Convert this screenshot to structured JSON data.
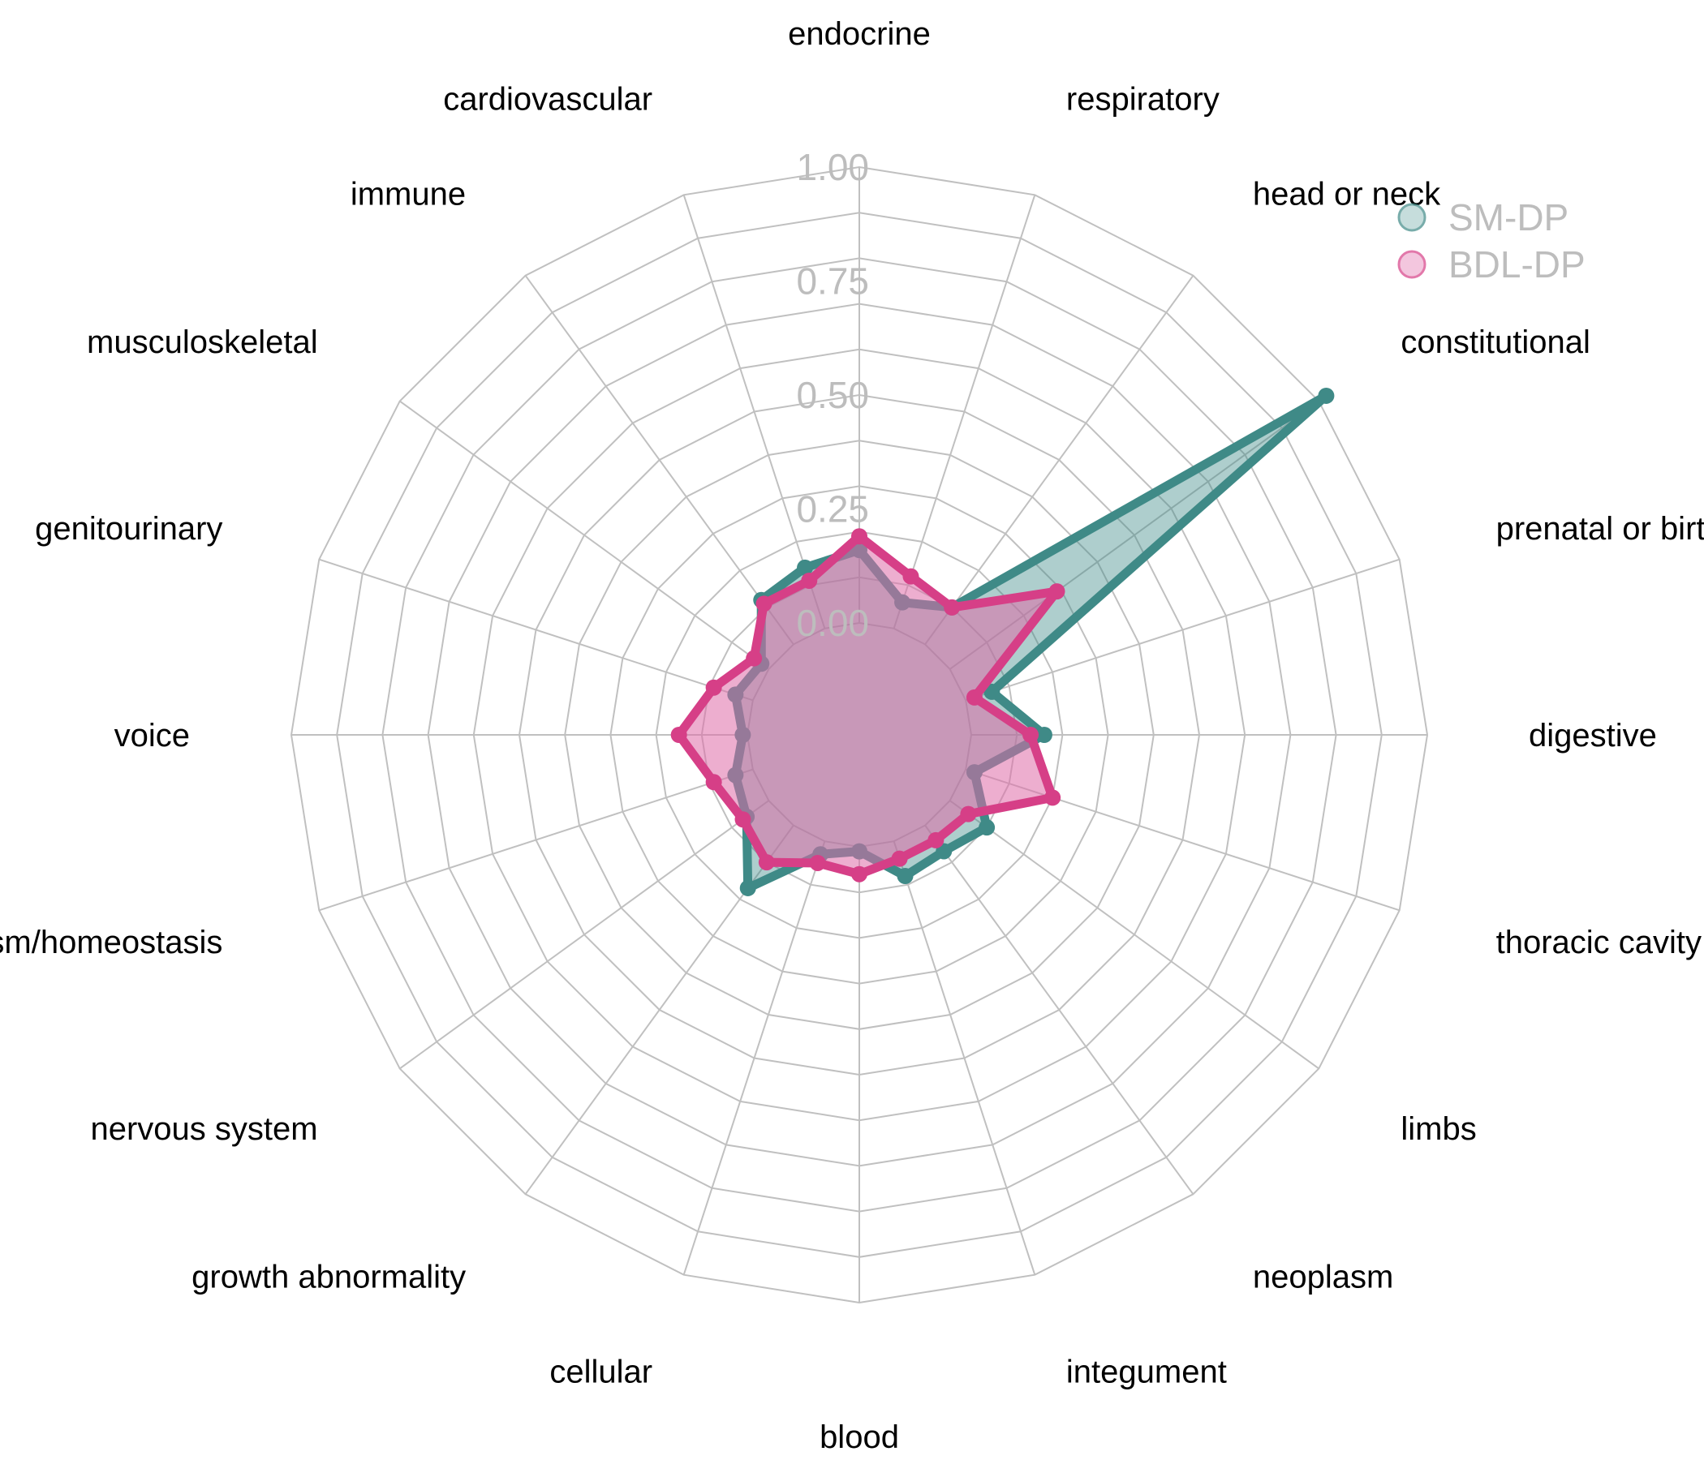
{
  "chart_data": {
    "type": "radar",
    "title": "",
    "range": [
      0,
      1
    ],
    "grid": true,
    "legend": "top-right",
    "ticks": [
      "0.00",
      "0.25",
      "0.50",
      "0.75",
      "1.00"
    ],
    "tick_values": [
      0,
      0.25,
      0.5,
      0.75,
      1.0
    ],
    "categories": [
      "endocrine",
      "respiratory",
      "head or neck",
      "constitutional",
      "prenatal or birth",
      "digestive",
      "thoracic cavity",
      "limbs",
      "neoplasm",
      "integument",
      "blood",
      "cellular",
      "growth abnormality",
      "nervous system",
      "metabolism/homeostasis",
      "voice",
      "genitourinary",
      "musculoskeletal",
      "immune",
      "cardiovascular"
    ],
    "series": [
      {
        "name": "SM-DP",
        "color": "#3f8a87",
        "fill": "rgba(63,138,135,0.42)",
        "values": [
          0.16,
          0.06,
          0.1,
          1.02,
          0.06,
          0.16,
          0.02,
          0.1,
          0.07,
          0.08,
          0.01,
          0.03,
          0.17,
          0.06,
          0.04,
          0.01,
          0.04,
          0.02,
          0.12,
          0.14
        ]
      },
      {
        "name": "BDL-DP",
        "color": "#d63f87",
        "fill": "rgba(222,107,167,0.55)",
        "values": [
          0.19,
          0.12,
          0.1,
          0.29,
          0.02,
          0.13,
          0.2,
          0.05,
          0.04,
          0.04,
          0.06,
          0.05,
          0.1,
          0.07,
          0.09,
          0.15,
          0.09,
          0.04,
          0.11,
          0.11
        ]
      }
    ]
  }
}
